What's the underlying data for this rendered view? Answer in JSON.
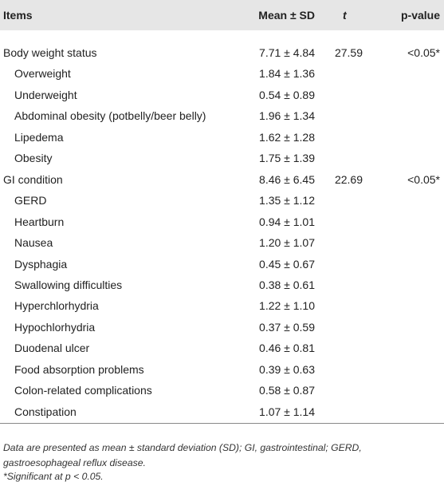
{
  "header": {
    "items": "Items",
    "mean_sd": "Mean ± SD",
    "t": "t",
    "p_value": "p-value"
  },
  "groups": [
    {
      "label": "Body weight status",
      "mean_sd": "7.71 ± 4.84",
      "t": "27.59",
      "p": "<0.05*",
      "items": [
        {
          "label": "Overweight",
          "mean_sd": "1.84 ± 1.36"
        },
        {
          "label": "Underweight",
          "mean_sd": "0.54 ± 0.89"
        },
        {
          "label": "Abdominal obesity (potbelly/beer belly)",
          "mean_sd": "1.96 ± 1.34"
        },
        {
          "label": "Lipedema",
          "mean_sd": "1.62 ± 1.28"
        },
        {
          "label": "Obesity",
          "mean_sd": "1.75 ± 1.39"
        }
      ]
    },
    {
      "label": "GI condition",
      "mean_sd": "8.46 ± 6.45",
      "t": "22.69",
      "p": "<0.05*",
      "items": [
        {
          "label": "GERD",
          "mean_sd": "1.35 ± 1.12"
        },
        {
          "label": "Heartburn",
          "mean_sd": "0.94 ± 1.01"
        },
        {
          "label": "Nausea",
          "mean_sd": "1.20 ± 1.07"
        },
        {
          "label": "Dysphagia",
          "mean_sd": "0.45 ± 0.67"
        },
        {
          "label": "Swallowing difficulties",
          "mean_sd": "0.38 ± 0.61"
        },
        {
          "label": "Hyperchlorhydria",
          "mean_sd": "1.22 ± 1.10"
        },
        {
          "label": "Hypochlorhydria",
          "mean_sd": "0.37 ± 0.59"
        },
        {
          "label": "Duodenal ulcer",
          "mean_sd": "0.46 ± 0.81"
        },
        {
          "label": "Food absorption problems",
          "mean_sd": "0.39 ± 0.63"
        },
        {
          "label": "Colon-related complications",
          "mean_sd": "0.58 ± 0.87"
        },
        {
          "label": "Constipation",
          "mean_sd": "1.07 ± 1.14"
        }
      ]
    }
  ],
  "footnotes": [
    "Data are presented as mean ± standard deviation (SD); GI, gastrointestinal; GERD, gastroesophageal reflux disease.",
    "*Significant at p < 0.05."
  ]
}
